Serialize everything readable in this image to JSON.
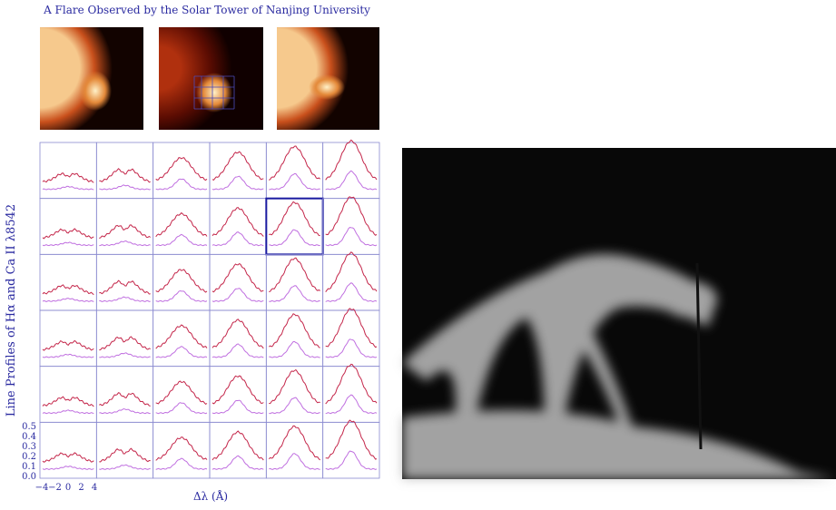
{
  "header": {
    "title": "A Flare Observed by the Solar Tower of Nanjing University"
  },
  "profile_grid": {
    "y_label": "Line Profiles of Hα and Ca II λ8542",
    "x_label": "Δλ (Å)",
    "y_tick_labels": [
      "0.5",
      "0.4",
      "0.3",
      "0.2",
      "0.1",
      "0.0"
    ],
    "x_tick_labels": [
      "−4",
      "−2",
      "0",
      "2",
      "4"
    ]
  }
}
